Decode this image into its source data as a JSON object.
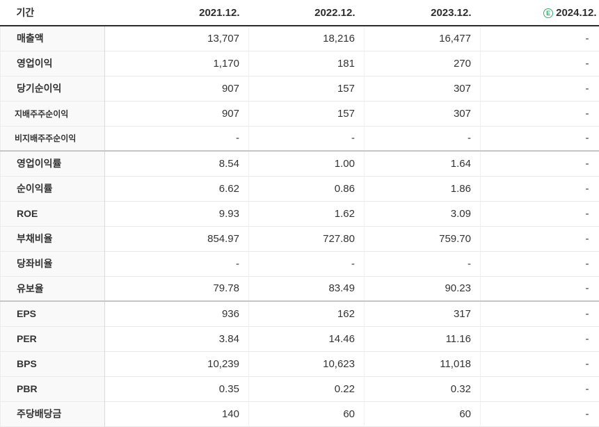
{
  "table": {
    "header": {
      "period_label": "기간",
      "columns": [
        "2021.12.",
        "2022.12.",
        "2023.12.",
        "2024.12."
      ],
      "estimate_badge": "E"
    },
    "rows": [
      {
        "label": "매출액",
        "values": [
          "13,707",
          "18,216",
          "16,477",
          "-"
        ]
      },
      {
        "label": "영업이익",
        "values": [
          "1,170",
          "181",
          "270",
          "-"
        ]
      },
      {
        "label": "당기순이익",
        "values": [
          "907",
          "157",
          "307",
          "-"
        ]
      },
      {
        "label": "지배주주순이익",
        "values": [
          "907",
          "157",
          "307",
          "-"
        ],
        "sub": true
      },
      {
        "label": "비지배주주순이익",
        "values": [
          "-",
          "-",
          "-",
          "-"
        ],
        "sub": true
      },
      {
        "label": "영업이익률",
        "values": [
          "8.54",
          "1.00",
          "1.64",
          "-"
        ],
        "group_start": true
      },
      {
        "label": "순이익률",
        "values": [
          "6.62",
          "0.86",
          "1.86",
          "-"
        ]
      },
      {
        "label": "ROE",
        "values": [
          "9.93",
          "1.62",
          "3.09",
          "-"
        ]
      },
      {
        "label": "부채비율",
        "values": [
          "854.97",
          "727.80",
          "759.70",
          "-"
        ]
      },
      {
        "label": "당좌비율",
        "values": [
          "-",
          "-",
          "-",
          "-"
        ]
      },
      {
        "label": "유보율",
        "values": [
          "79.78",
          "83.49",
          "90.23",
          "-"
        ]
      },
      {
        "label": "EPS",
        "values": [
          "936",
          "162",
          "317",
          "-"
        ],
        "group_start": true
      },
      {
        "label": "PER",
        "values": [
          "3.84",
          "14.46",
          "11.16",
          "-"
        ]
      },
      {
        "label": "BPS",
        "values": [
          "10,239",
          "10,623",
          "11,018",
          "-"
        ]
      },
      {
        "label": "PBR",
        "values": [
          "0.35",
          "0.22",
          "0.32",
          "-"
        ]
      },
      {
        "label": "주당배당금",
        "values": [
          "140",
          "60",
          "60",
          "-"
        ]
      }
    ],
    "colors": {
      "estimate_green": "#2daf69",
      "header_border": "#2b2b2e",
      "group_border": "#c6c6c6",
      "row_border": "#ebebeb",
      "label_bg": "#f9f9f9"
    }
  }
}
